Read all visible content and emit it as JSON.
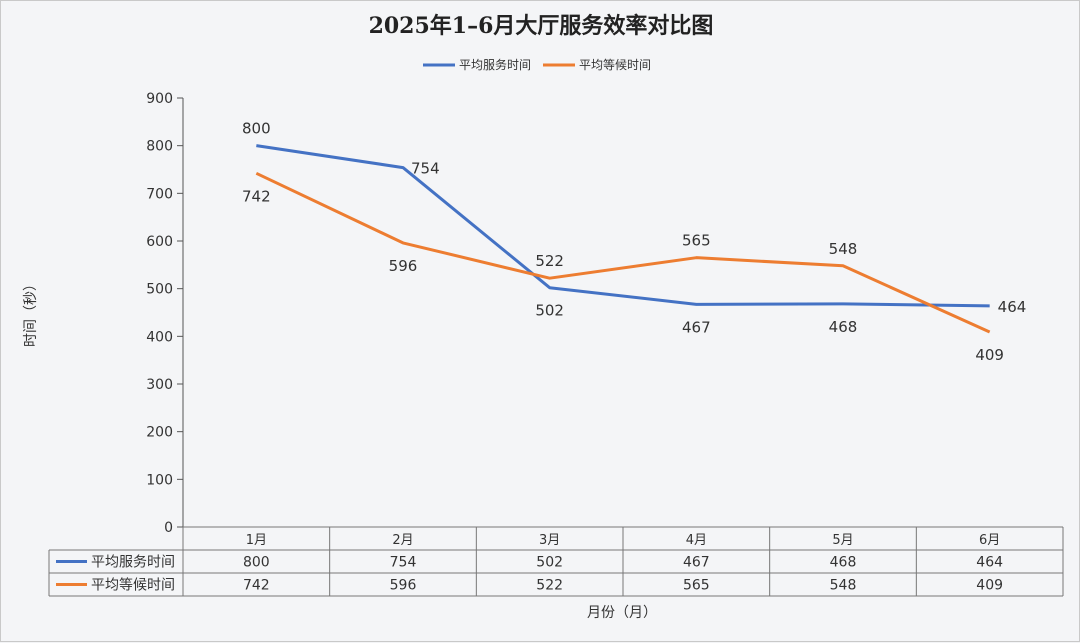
{
  "chart_data": {
    "type": "line",
    "title": "2025年1–6月大厅服务效率对比图",
    "xlabel": "月份（月）",
    "ylabel": "时间（秒）",
    "categories": [
      "1月",
      "2月",
      "3月",
      "4月",
      "5月",
      "6月"
    ],
    "ylim": [
      0,
      900
    ],
    "yticks": [
      0,
      100,
      200,
      300,
      400,
      500,
      600,
      700,
      800,
      900
    ],
    "grid": false,
    "legend_position": "top",
    "data_table": true,
    "series": [
      {
        "name": "平均服务时间",
        "color": "#4472c4",
        "values": [
          800,
          754,
          502,
          467,
          468,
          464
        ]
      },
      {
        "name": "平均等候时间",
        "color": "#ed7d31",
        "values": [
          742,
          596,
          522,
          565,
          548,
          409
        ]
      }
    ]
  }
}
